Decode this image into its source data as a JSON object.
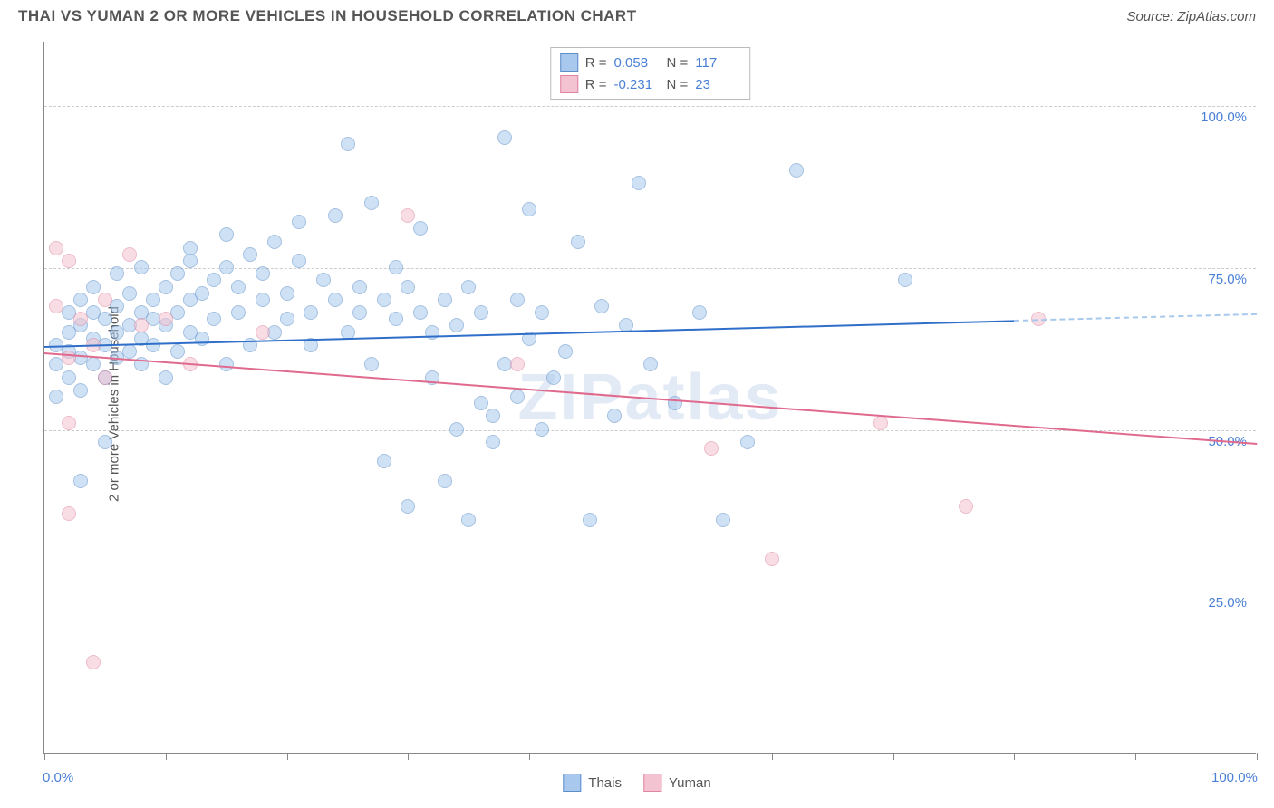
{
  "title": "THAI VS YUMAN 2 OR MORE VEHICLES IN HOUSEHOLD CORRELATION CHART",
  "source": "Source: ZipAtlas.com",
  "ylabel": "2 or more Vehicles in Household",
  "watermark": "ZIPatlas",
  "chart": {
    "type": "scatter",
    "background_color": "#ffffff",
    "grid_color": "#cccccc",
    "axis_color": "#888888",
    "xlim": [
      0,
      100
    ],
    "ylim": [
      0,
      110
    ],
    "y_gridlines": [
      25,
      50,
      75,
      100
    ],
    "y_tick_labels": [
      "25.0%",
      "50.0%",
      "75.0%",
      "100.0%"
    ],
    "x_ticks": [
      0,
      10,
      20,
      30,
      40,
      50,
      60,
      70,
      80,
      90,
      100
    ],
    "x_tick_labels": {
      "0": "0.0%",
      "100": "100.0%"
    },
    "point_radius": 8,
    "point_opacity": 0.55,
    "series": [
      {
        "name": "Thais",
        "color": "#6da3e0",
        "fill": "#a8c9ed",
        "stroke": "#5c8fc9",
        "r_value": "0.058",
        "n_value": "117",
        "trend": {
          "x1": 0,
          "y1": 63,
          "x2": 80,
          "y2": 67,
          "color": "#2f6fc9",
          "extend_x": 100,
          "extend_color": "#a8c9ed"
        },
        "points": [
          [
            1,
            63
          ],
          [
            1,
            60
          ],
          [
            1,
            55
          ],
          [
            2,
            68
          ],
          [
            2,
            62
          ],
          [
            2,
            58
          ],
          [
            2,
            65
          ],
          [
            3,
            66
          ],
          [
            3,
            70
          ],
          [
            3,
            61
          ],
          [
            3,
            56
          ],
          [
            3,
            42
          ],
          [
            4,
            64
          ],
          [
            4,
            68
          ],
          [
            4,
            60
          ],
          [
            4,
            72
          ],
          [
            5,
            67
          ],
          [
            5,
            63
          ],
          [
            5,
            58
          ],
          [
            5,
            48
          ],
          [
            6,
            69
          ],
          [
            6,
            65
          ],
          [
            6,
            61
          ],
          [
            6,
            74
          ],
          [
            7,
            66
          ],
          [
            7,
            62
          ],
          [
            7,
            71
          ],
          [
            8,
            75
          ],
          [
            8,
            68
          ],
          [
            8,
            60
          ],
          [
            8,
            64
          ],
          [
            9,
            67
          ],
          [
            9,
            70
          ],
          [
            9,
            63
          ],
          [
            10,
            72
          ],
          [
            10,
            66
          ],
          [
            10,
            58
          ],
          [
            11,
            74
          ],
          [
            11,
            68
          ],
          [
            11,
            62
          ],
          [
            12,
            76
          ],
          [
            12,
            70
          ],
          [
            12,
            65
          ],
          [
            12,
            78
          ],
          [
            13,
            71
          ],
          [
            13,
            64
          ],
          [
            14,
            73
          ],
          [
            14,
            67
          ],
          [
            15,
            75
          ],
          [
            15,
            60
          ],
          [
            15,
            80
          ],
          [
            16,
            68
          ],
          [
            16,
            72
          ],
          [
            17,
            77
          ],
          [
            17,
            63
          ],
          [
            18,
            70
          ],
          [
            18,
            74
          ],
          [
            19,
            65
          ],
          [
            19,
            79
          ],
          [
            20,
            67
          ],
          [
            20,
            71
          ],
          [
            21,
            76
          ],
          [
            21,
            82
          ],
          [
            22,
            68
          ],
          [
            22,
            63
          ],
          [
            23,
            73
          ],
          [
            24,
            70
          ],
          [
            24,
            83
          ],
          [
            25,
            65
          ],
          [
            25,
            94
          ],
          [
            26,
            72
          ],
          [
            26,
            68
          ],
          [
            27,
            85
          ],
          [
            27,
            60
          ],
          [
            28,
            70
          ],
          [
            28,
            45
          ],
          [
            29,
            67
          ],
          [
            29,
            75
          ],
          [
            30,
            72
          ],
          [
            30,
            38
          ],
          [
            31,
            68
          ],
          [
            31,
            81
          ],
          [
            32,
            65
          ],
          [
            32,
            58
          ],
          [
            33,
            70
          ],
          [
            33,
            42
          ],
          [
            34,
            66
          ],
          [
            34,
            50
          ],
          [
            35,
            72
          ],
          [
            35,
            36
          ],
          [
            36,
            68
          ],
          [
            36,
            54
          ],
          [
            37,
            48
          ],
          [
            37,
            52
          ],
          [
            38,
            60
          ],
          [
            38,
            95
          ],
          [
            39,
            55
          ],
          [
            39,
            70
          ],
          [
            40,
            64
          ],
          [
            40,
            84
          ],
          [
            41,
            50
          ],
          [
            41,
            68
          ],
          [
            42,
            58
          ],
          [
            43,
            62
          ],
          [
            44,
            79
          ],
          [
            45,
            36
          ],
          [
            46,
            69
          ],
          [
            47,
            52
          ],
          [
            48,
            66
          ],
          [
            49,
            88
          ],
          [
            50,
            60
          ],
          [
            52,
            54
          ],
          [
            54,
            68
          ],
          [
            56,
            36
          ],
          [
            58,
            48
          ],
          [
            62,
            90
          ],
          [
            71,
            73
          ]
        ]
      },
      {
        "name": "Yuman",
        "color": "#e89db1",
        "fill": "#f3c3d1",
        "stroke": "#e084a0",
        "r_value": "-0.231",
        "n_value": "23",
        "trend": {
          "x1": 0,
          "y1": 62,
          "x2": 100,
          "y2": 48,
          "color": "#e06a8e"
        },
        "points": [
          [
            1,
            78
          ],
          [
            1,
            69
          ],
          [
            2,
            76
          ],
          [
            2,
            61
          ],
          [
            2,
            51
          ],
          [
            2,
            37
          ],
          [
            3,
            67
          ],
          [
            4,
            63
          ],
          [
            4,
            14
          ],
          [
            5,
            70
          ],
          [
            5,
            58
          ],
          [
            7,
            77
          ],
          [
            8,
            66
          ],
          [
            10,
            67
          ],
          [
            12,
            60
          ],
          [
            18,
            65
          ],
          [
            30,
            83
          ],
          [
            39,
            60
          ],
          [
            55,
            47
          ],
          [
            60,
            30
          ],
          [
            69,
            51
          ],
          [
            76,
            38
          ],
          [
            82,
            67
          ]
        ]
      }
    ]
  },
  "legend_top": [
    {
      "swatch_fill": "#a8c9ed",
      "swatch_stroke": "#5c8fc9",
      "r": "0.058",
      "n": "117"
    },
    {
      "swatch_fill": "#f3c3d1",
      "swatch_stroke": "#e084a0",
      "r": "-0.231",
      "n": "23"
    }
  ],
  "legend_bottom": [
    {
      "swatch_fill": "#a8c9ed",
      "swatch_stroke": "#5c8fc9",
      "label": "Thais"
    },
    {
      "swatch_fill": "#f3c3d1",
      "swatch_stroke": "#e084a0",
      "label": "Yuman"
    }
  ]
}
